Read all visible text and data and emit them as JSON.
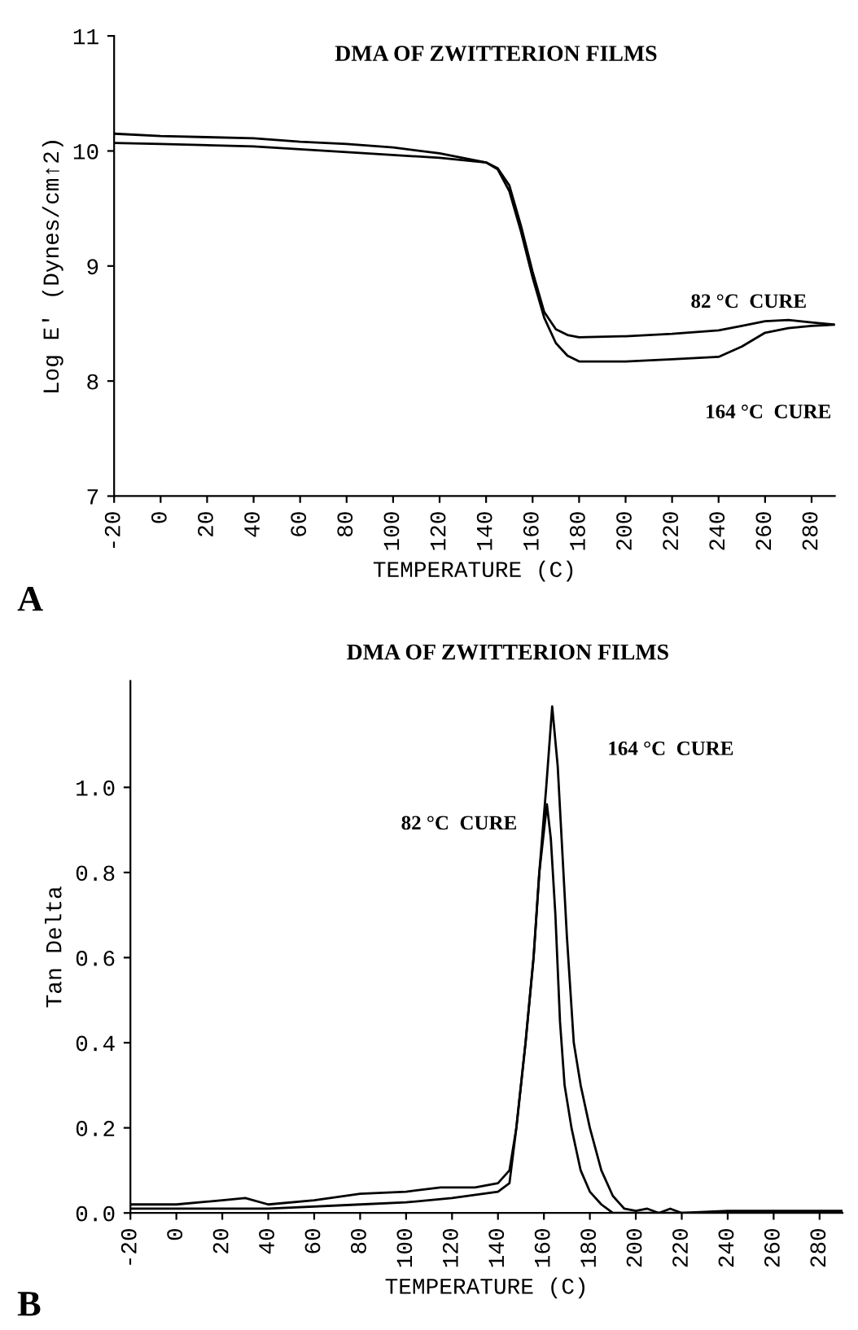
{
  "chart_data": [
    {
      "type": "line",
      "title": "DMA OF ZWITTERION FILMS",
      "xlabel": "TEMPERATURE (C)",
      "ylabel": "Log E' (Dynes/cm↑2)",
      "xlim": [
        -20,
        290
      ],
      "xticks": [
        -20,
        0,
        20,
        40,
        60,
        80,
        100,
        120,
        140,
        160,
        180,
        200,
        220,
        240,
        260,
        280
      ],
      "ylim": [
        7,
        11
      ],
      "yticks": [
        7,
        8,
        9,
        10,
        11
      ],
      "grid": false,
      "line_style": "solid",
      "marker": "none",
      "series": [
        {
          "name": "82 °C  CURE",
          "color": "#000000",
          "x": [
            -20,
            0,
            40,
            80,
            120,
            140,
            145,
            150,
            155,
            160,
            165,
            170,
            175,
            180,
            200,
            220,
            240,
            250,
            260,
            270,
            280,
            290
          ],
          "values": [
            10.07,
            10.06,
            10.04,
            9.99,
            9.94,
            9.9,
            9.85,
            9.7,
            9.35,
            8.95,
            8.6,
            8.45,
            8.4,
            8.38,
            8.39,
            8.41,
            8.44,
            8.48,
            8.52,
            8.53,
            8.51,
            8.49
          ]
        },
        {
          "name": "164 °C  CURE",
          "color": "#000000",
          "x": [
            -20,
            0,
            20,
            40,
            60,
            80,
            100,
            120,
            140,
            145,
            150,
            155,
            160,
            165,
            170,
            175,
            180,
            200,
            220,
            240,
            250,
            260,
            270,
            280,
            290
          ],
          "values": [
            10.15,
            10.13,
            10.12,
            10.11,
            10.08,
            10.06,
            10.03,
            9.98,
            9.9,
            9.84,
            9.65,
            9.3,
            8.9,
            8.55,
            8.33,
            8.22,
            8.17,
            8.17,
            8.19,
            8.21,
            8.3,
            8.42,
            8.46,
            8.48,
            8.49
          ]
        }
      ],
      "annotations": [
        "A"
      ]
    },
    {
      "type": "line",
      "title": "DMA OF ZWITTERION FILMS",
      "xlabel": "TEMPERATURE (C)",
      "ylabel": "Tan Delta",
      "xlim": [
        -20,
        290
      ],
      "xticks": [
        -20,
        0,
        20,
        40,
        60,
        80,
        100,
        120,
        140,
        160,
        180,
        200,
        220,
        240,
        260,
        280
      ],
      "ylim": [
        0,
        1.25
      ],
      "yticks": [
        {
          "value": 0,
          "label": "0.0"
        },
        {
          "value": 0.2,
          "label": "0.2"
        },
        {
          "value": 0.4,
          "label": "0.4"
        },
        {
          "value": 0.6,
          "label": "0.6"
        },
        {
          "value": 0.8,
          "label": "0.8"
        },
        {
          "value": 1.0,
          "label": "1.0"
        }
      ],
      "grid": false,
      "line_style": "solid",
      "marker": "none",
      "series": [
        {
          "name": "82 °C  CURE",
          "color": "#000000",
          "x": [
            -20,
            0,
            40,
            80,
            100,
            120,
            140,
            145,
            148,
            152,
            155.5,
            158,
            161.3,
            163,
            165,
            167,
            169,
            172,
            176,
            180,
            185,
            190,
            200,
            290
          ],
          "values": [
            0.01,
            0.01,
            0.01,
            0.02,
            0.025,
            0.035,
            0.05,
            0.07,
            0.2,
            0.4,
            0.6,
            0.8,
            0.96,
            0.88,
            0.7,
            0.45,
            0.3,
            0.2,
            0.1,
            0.05,
            0.02,
            0.0,
            0.0,
            0.0
          ]
        },
        {
          "name": "164 °C  CURE",
          "color": "#000000",
          "x": [
            -20,
            0,
            20,
            30,
            40,
            60,
            80,
            100,
            115,
            130,
            140,
            145,
            148,
            152,
            155.5,
            158,
            161,
            163.6,
            166,
            168,
            170,
            173,
            176,
            180,
            185,
            190,
            195,
            200,
            205,
            210,
            215,
            220,
            240,
            260,
            290
          ],
          "values": [
            0.02,
            0.02,
            0.03,
            0.035,
            0.02,
            0.03,
            0.045,
            0.05,
            0.06,
            0.06,
            0.07,
            0.1,
            0.2,
            0.4,
            0.6,
            0.8,
            1.0,
            1.19,
            1.05,
            0.85,
            0.65,
            0.4,
            0.3,
            0.2,
            0.1,
            0.04,
            0.01,
            0.005,
            0.01,
            0.0,
            0.01,
            0.0,
            0.005,
            0.005,
            0.005
          ]
        }
      ],
      "annotations": [
        "B"
      ]
    }
  ]
}
